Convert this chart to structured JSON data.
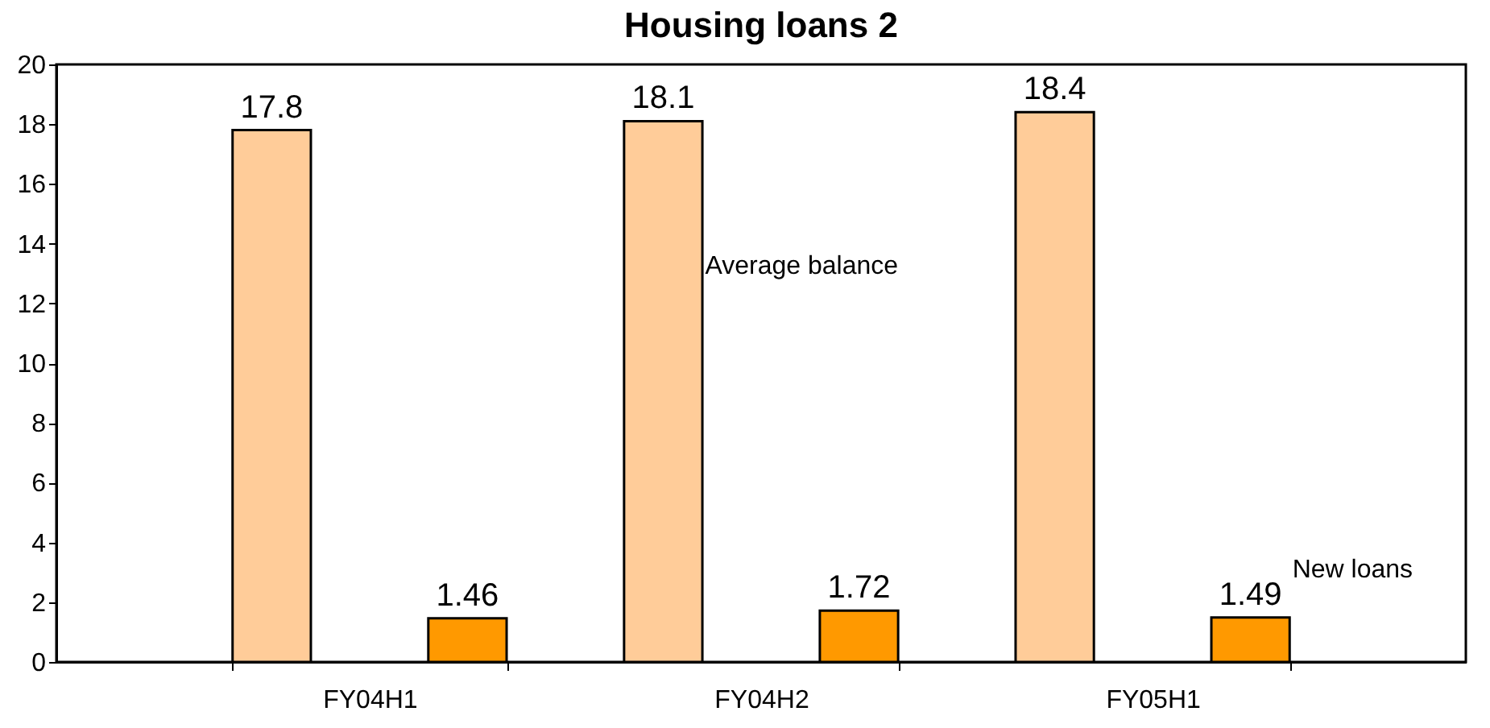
{
  "chart_data": {
    "type": "bar",
    "title": "Housing loans 2",
    "categories": [
      "FY04H1",
      "FY04H2",
      "FY05H1"
    ],
    "series": [
      {
        "name": "Average balance",
        "color": "#ffcc99",
        "values": [
          17.8,
          18.1,
          18.4
        ]
      },
      {
        "name": "New loans",
        "color": "#ff9900",
        "values": [
          1.46,
          1.72,
          1.49
        ]
      }
    ],
    "ylim": [
      0,
      20
    ],
    "yticks": [
      0,
      2,
      4,
      6,
      8,
      10,
      12,
      14,
      16,
      18,
      20
    ],
    "grid": false,
    "legend": false,
    "data_labels": true
  }
}
